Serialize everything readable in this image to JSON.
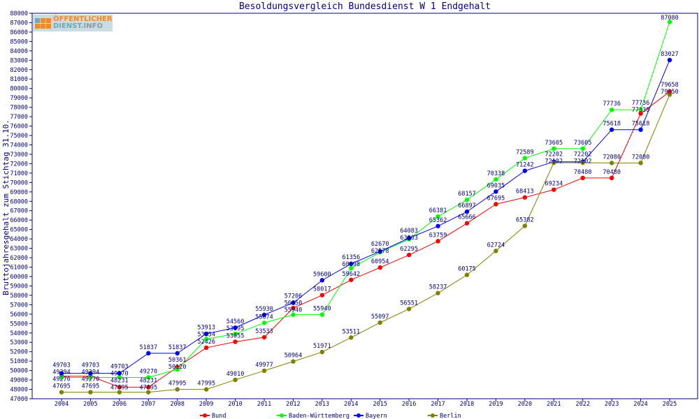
{
  "logo_text": "ÖFFENTLICHER DIENST.INFO",
  "chart_data": {
    "type": "line",
    "title": "Besoldungsvergleich Bundesdienst W 1 Endgehalt",
    "xlabel": "",
    "ylabel": "Bruttojahresgehalt zum Stichtag 31.10.",
    "ylim": [
      47000,
      88000
    ],
    "ytick_step": 1000,
    "grid": false,
    "legend_position": "bottom",
    "categories": [
      "2004",
      "2005",
      "2006",
      "2007",
      "2008",
      "2009",
      "2010",
      "2011",
      "2012",
      "2013",
      "2014",
      "2015",
      "2016",
      "2017",
      "2018",
      "2019",
      "2020",
      "2021",
      "2022",
      "2023",
      "2024",
      "2025"
    ],
    "series": [
      {
        "name": "Bund",
        "color": "#ff0000",
        "values": [
          49394,
          49394,
          48231,
          48231,
          50361,
          52426,
          53055,
          53533,
          56650,
          58017,
          59642,
          60954,
          62295,
          63759,
          65666,
          67695,
          68413,
          69234,
          70480,
          70480,
          77338,
          79658
        ]
      },
      {
        "name": "Baden-Württemberg",
        "color": "#00ff00",
        "values": [
          49270,
          49270,
          49270,
          49270,
          50120,
          53354,
          53895,
          55074,
          55940,
          55940,
          60898,
          62578,
          63963,
          66381,
          68157,
          70338,
          72589,
          73605,
          73605,
          77736,
          77736,
          87080
        ]
      },
      {
        "name": "Bayern",
        "color": "#0000ff",
        "values": [
          49703,
          49703,
          49703,
          51837,
          51837,
          53913,
          54560,
          55930,
          57206,
          59600,
          61356,
          62670,
          64083,
          65362,
          66897,
          69035,
          71242,
          72202,
          72202,
          75618,
          75618,
          83027
        ]
      },
      {
        "name": "Berlin",
        "color": "#808000",
        "values": [
          47695,
          47695,
          47695,
          47695,
          47995,
          47995,
          49010,
          49977,
          50964,
          51971,
          53511,
          55097,
          56551,
          58237,
          60175,
          62724,
          65382,
          72102,
          72102,
          72080,
          72080,
          79350
        ]
      }
    ]
  }
}
